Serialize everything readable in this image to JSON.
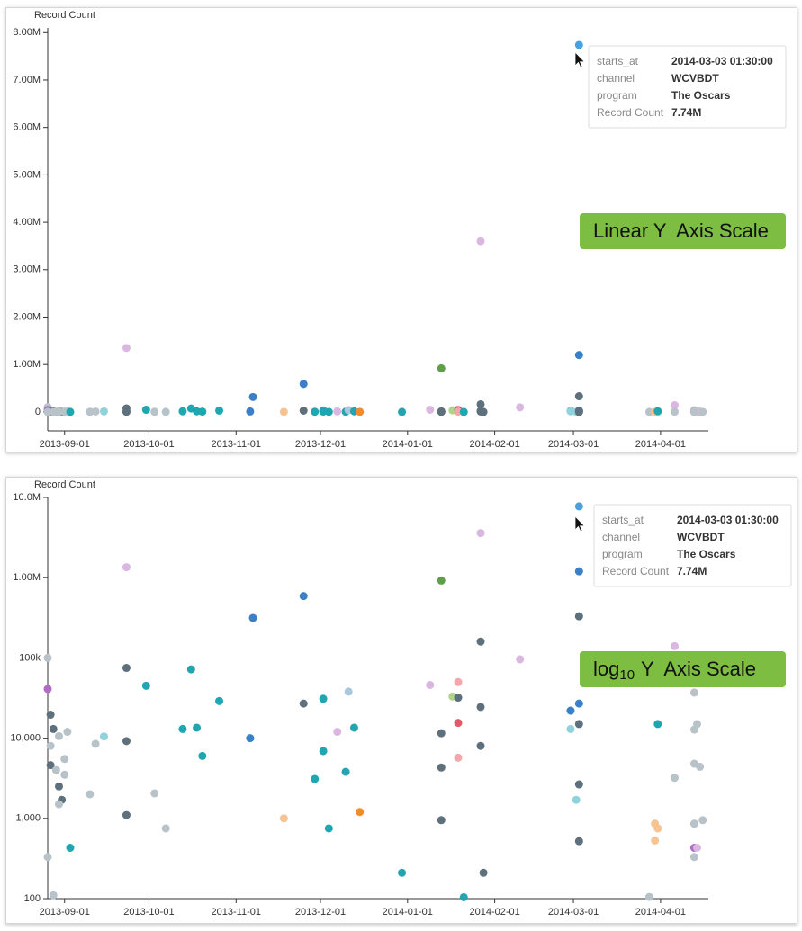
{
  "chart_data": [
    {
      "type": "scatter",
      "yscale": "linear",
      "y_label": "Record Count",
      "annotation": {
        "text": "Linear Y  Axis Scale"
      },
      "tooltip": {
        "rows": [
          [
            "starts_at",
            "2014-03-03 01:30:00"
          ],
          [
            "channel",
            "WCVBDT"
          ],
          [
            "program",
            "The Oscars"
          ],
          [
            "Record Count",
            "7.74M"
          ]
        ]
      },
      "xlim": [
        "2013-08-26",
        "2014-04-18"
      ],
      "xticks": [
        "2013-09-01",
        "2013-10-01",
        "2013-11-01",
        "2013-12-01",
        "2014-01-01",
        "2014-02-01",
        "2014-03-01",
        "2014-04-01"
      ],
      "ylim": [
        -400000,
        8100000
      ],
      "yticks": [
        0,
        {
          "value": 1000000,
          "label": "1.00M"
        },
        {
          "value": 2000000,
          "label": "2.00M"
        },
        {
          "value": 3000000,
          "label": "3.00M"
        },
        {
          "value": 4000000,
          "label": "4.00M"
        },
        {
          "value": 5000000,
          "label": "5.00M"
        },
        {
          "value": 6000000,
          "label": "6.00M"
        },
        {
          "value": 7000000,
          "label": "7.00M"
        },
        {
          "value": 8000000,
          "label": "8.00M"
        }
      ],
      "x": [
        "2013-08-26",
        "2013-08-26",
        "2013-08-27",
        "2013-08-28",
        "2013-08-27",
        "2013-08-27",
        "2013-08-29",
        "2013-08-30",
        "2013-08-30",
        "2013-08-31",
        "2013-08-30",
        "2013-09-01",
        "2013-09-01",
        "2013-09-02",
        "2013-09-03",
        "2013-08-28",
        "2013-08-26",
        "2013-09-10",
        "2013-09-12",
        "2013-09-15",
        "2013-09-23",
        "2013-09-23",
        "2013-09-23",
        "2013-09-23",
        "2013-09-30",
        "2013-10-03",
        "2013-10-07",
        "2013-10-13",
        "2013-10-16",
        "2013-10-18",
        "2013-10-20",
        "2013-10-26",
        "2013-11-06",
        "2013-11-07",
        "2013-11-18",
        "2013-11-25",
        "2013-11-25",
        "2013-11-29",
        "2013-12-02",
        "2013-12-02",
        "2013-12-04",
        "2013-12-07",
        "2013-12-10",
        "2013-12-11",
        "2013-12-13",
        "2013-12-15",
        "2013-12-30",
        "2014-01-09",
        "2014-01-13",
        "2014-01-13",
        "2014-01-13",
        "2014-01-13",
        "2014-01-17",
        "2014-01-19",
        "2014-01-19",
        "2014-01-19",
        "2014-01-19",
        "2014-01-21",
        "2014-01-27",
        "2014-01-27",
        "2014-01-27",
        "2014-01-27",
        "2014-01-28",
        "2014-02-10",
        "2014-02-28",
        "2014-02-28",
        "2014-03-02",
        "2014-03-03",
        "2014-03-03",
        "2014-03-03",
        "2014-03-03",
        "2014-03-03",
        "2014-03-03",
        "2014-03-03",
        "2014-03-28",
        "2014-03-30",
        "2014-03-31",
        "2014-03-30",
        "2014-03-31",
        "2014-04-06",
        "2014-04-06",
        "2014-04-13",
        "2014-04-14",
        "2014-04-13",
        "2014-04-15",
        "2014-04-13",
        "2014-04-13",
        "2014-04-13",
        "2014-04-14",
        "2014-04-13",
        "2014-04-16"
      ],
      "values": [
        100000,
        41000,
        19600,
        13000,
        8000,
        4600,
        4000,
        10600,
        2500,
        1700,
        1500,
        3500,
        5500,
        12000,
        430,
        110,
        330,
        2000,
        8500,
        10500,
        1350000,
        75000,
        9200,
        1100,
        45000,
        2050,
        750,
        13000,
        72000,
        13500,
        6000,
        29000,
        10000,
        315000,
        1000,
        590000,
        27000,
        3100,
        31000,
        6900,
        750,
        12000,
        3800,
        38000,
        13500,
        1200,
        210,
        46000,
        920000,
        11500,
        4300,
        950,
        33000,
        50000,
        32000,
        15500,
        5700,
        104,
        3600000,
        160000,
        24500,
        8000,
        210,
        96000,
        22000,
        13000,
        1700,
        7740000,
        1200000,
        330000,
        27000,
        15000,
        2650,
        520,
        105,
        860,
        750,
        530,
        15000,
        140000,
        3200,
        37000,
        15000,
        4800,
        4400,
        12800,
        860,
        430,
        430,
        330,
        950
      ],
      "colors": [
        "#b8c3c9",
        "#b36ac8",
        "#5d707c",
        "#5d707c",
        "#b8c3c9",
        "#5d707c",
        "#b8c3c9",
        "#b8c3c9",
        "#5d707c",
        "#5d707c",
        "#b8c3c9",
        "#b8c3c9",
        "#b8c3c9",
        "#b8c3c9",
        "#1fa6b1",
        "#b8c3c9",
        "#b8c3c9",
        "#b8c3c9",
        "#b8c3c9",
        "#8fd4dc",
        "#dab7e0",
        "#5d707c",
        "#5d707c",
        "#5d707c",
        "#1fa6b1",
        "#b8c3c9",
        "#b8c3c9",
        "#1fa6b1",
        "#1fa6b1",
        "#1fa6b1",
        "#1fa6b1",
        "#1fa6b1",
        "#3b80c6",
        "#3b80c6",
        "#f7c391",
        "#3b80c6",
        "#5d707c",
        "#1fa6b1",
        "#1fa6b1",
        "#1fa6b1",
        "#1fa6b1",
        "#dab7e0",
        "#1fa6b1",
        "#a9c8dd",
        "#1fa6b1",
        "#ef8c2c",
        "#1fa6b1",
        "#dab7e0",
        "#5ea04a",
        "#5d707c",
        "#5d707c",
        "#5d707c",
        "#b2d38b",
        "#f4a6ad",
        "#5d707c",
        "#e4596a",
        "#f4a6ad",
        "#1fa6b1",
        "#dab7e0",
        "#5d707c",
        "#5d707c",
        "#5d707c",
        "#5d707c",
        "#dab7e0",
        "#3b80c6",
        "#8fd4dc",
        "#8fd4dc",
        "#4a9fdd",
        "#3b80c6",
        "#5d707c",
        "#3b80c6",
        "#5d707c",
        "#5d707c",
        "#5d707c",
        "#b8c3c9",
        "#f7c391",
        "#f7c391",
        "#f7c391",
        "#1fa6b1",
        "#dab7e0",
        "#b8c3c9",
        "#b8c3c9",
        "#b8c3c9",
        "#b8c3c9",
        "#b8c3c9",
        "#b8c3c9",
        "#b8c3c9",
        "#b36ac8",
        "#dab7e0",
        "#b8c3c9",
        "#b8c3c9"
      ]
    },
    {
      "type": "scatter",
      "yscale": "log",
      "y_label": "Record Count",
      "annotation": {
        "text": "log",
        "subscript": "10",
        "rest": "Y  Axis Scale"
      },
      "tooltip": {
        "rows": [
          [
            "starts_at",
            "2014-03-03 01:30:00"
          ],
          [
            "channel",
            "WCVBDT"
          ],
          [
            "program",
            "The Oscars"
          ],
          [
            "Record Count",
            "7.74M"
          ]
        ]
      },
      "xlim": [
        "2013-08-26",
        "2014-04-18"
      ],
      "xticks": [
        "2013-09-01",
        "2013-10-01",
        "2013-11-01",
        "2013-12-01",
        "2014-01-01",
        "2014-02-01",
        "2014-03-01",
        "2014-04-01"
      ],
      "ylim": [
        100,
        10000000
      ],
      "yticks": [
        100,
        {
          "value": 1000,
          "label": "1,000"
        },
        {
          "value": 10000,
          "label": "10,000"
        },
        {
          "value": 100000,
          "label": "100k"
        },
        {
          "value": 1000000,
          "label": "1.00M"
        },
        {
          "value": 10000000,
          "label": "10.0M"
        }
      ],
      "x": [
        "2013-08-26",
        "2013-08-26",
        "2013-08-27",
        "2013-08-28",
        "2013-08-27",
        "2013-08-27",
        "2013-08-29",
        "2013-08-30",
        "2013-08-30",
        "2013-08-31",
        "2013-08-30",
        "2013-09-01",
        "2013-09-01",
        "2013-09-02",
        "2013-09-03",
        "2013-08-28",
        "2013-08-26",
        "2013-09-10",
        "2013-09-12",
        "2013-09-15",
        "2013-09-23",
        "2013-09-23",
        "2013-09-23",
        "2013-09-23",
        "2013-09-30",
        "2013-10-03",
        "2013-10-07",
        "2013-10-13",
        "2013-10-16",
        "2013-10-18",
        "2013-10-20",
        "2013-10-26",
        "2013-11-06",
        "2013-11-07",
        "2013-11-18",
        "2013-11-25",
        "2013-11-25",
        "2013-11-29",
        "2013-12-02",
        "2013-12-02",
        "2013-12-04",
        "2013-12-07",
        "2013-12-10",
        "2013-12-11",
        "2013-12-13",
        "2013-12-15",
        "2013-12-30",
        "2014-01-09",
        "2014-01-13",
        "2014-01-13",
        "2014-01-13",
        "2014-01-13",
        "2014-01-17",
        "2014-01-19",
        "2014-01-19",
        "2014-01-19",
        "2014-01-19",
        "2014-01-21",
        "2014-01-27",
        "2014-01-27",
        "2014-01-27",
        "2014-01-27",
        "2014-01-28",
        "2014-02-10",
        "2014-02-28",
        "2014-02-28",
        "2014-03-02",
        "2014-03-03",
        "2014-03-03",
        "2014-03-03",
        "2014-03-03",
        "2014-03-03",
        "2014-03-03",
        "2014-03-03",
        "2014-03-28",
        "2014-03-30",
        "2014-03-31",
        "2014-03-30",
        "2014-03-31",
        "2014-04-06",
        "2014-04-06",
        "2014-04-13",
        "2014-04-14",
        "2014-04-13",
        "2014-04-15",
        "2014-04-13",
        "2014-04-13",
        "2014-04-13",
        "2014-04-14",
        "2014-04-13",
        "2014-04-16"
      ],
      "values": [
        100000,
        41000,
        19600,
        13000,
        8000,
        4600,
        4000,
        10600,
        2500,
        1700,
        1500,
        3500,
        5500,
        12000,
        430,
        110,
        330,
        2000,
        8500,
        10500,
        1350000,
        75000,
        9200,
        1100,
        45000,
        2050,
        750,
        13000,
        72000,
        13500,
        6000,
        29000,
        10000,
        315000,
        1000,
        590000,
        27000,
        3100,
        31000,
        6900,
        750,
        12000,
        3800,
        38000,
        13500,
        1200,
        210,
        46000,
        920000,
        11500,
        4300,
        950,
        33000,
        50000,
        32000,
        15500,
        5700,
        104,
        3600000,
        160000,
        24500,
        8000,
        210,
        96000,
        22000,
        13000,
        1700,
        7740000,
        1200000,
        330000,
        27000,
        15000,
        2650,
        520,
        105,
        860,
        750,
        530,
        15000,
        140000,
        3200,
        37000,
        15000,
        4800,
        4400,
        12800,
        860,
        430,
        430,
        330,
        950
      ],
      "colors": [
        "#b8c3c9",
        "#b36ac8",
        "#5d707c",
        "#5d707c",
        "#b8c3c9",
        "#5d707c",
        "#b8c3c9",
        "#b8c3c9",
        "#5d707c",
        "#5d707c",
        "#b8c3c9",
        "#b8c3c9",
        "#b8c3c9",
        "#b8c3c9",
        "#1fa6b1",
        "#b8c3c9",
        "#b8c3c9",
        "#b8c3c9",
        "#b8c3c9",
        "#8fd4dc",
        "#dab7e0",
        "#5d707c",
        "#5d707c",
        "#5d707c",
        "#1fa6b1",
        "#b8c3c9",
        "#b8c3c9",
        "#1fa6b1",
        "#1fa6b1",
        "#1fa6b1",
        "#1fa6b1",
        "#1fa6b1",
        "#3b80c6",
        "#3b80c6",
        "#f7c391",
        "#3b80c6",
        "#5d707c",
        "#1fa6b1",
        "#1fa6b1",
        "#1fa6b1",
        "#1fa6b1",
        "#dab7e0",
        "#1fa6b1",
        "#a9c8dd",
        "#1fa6b1",
        "#ef8c2c",
        "#1fa6b1",
        "#dab7e0",
        "#5ea04a",
        "#5d707c",
        "#5d707c",
        "#5d707c",
        "#b2d38b",
        "#f4a6ad",
        "#5d707c",
        "#e4596a",
        "#f4a6ad",
        "#1fa6b1",
        "#dab7e0",
        "#5d707c",
        "#5d707c",
        "#5d707c",
        "#5d707c",
        "#dab7e0",
        "#3b80c6",
        "#8fd4dc",
        "#8fd4dc",
        "#4a9fdd",
        "#3b80c6",
        "#5d707c",
        "#3b80c6",
        "#5d707c",
        "#5d707c",
        "#5d707c",
        "#b8c3c9",
        "#f7c391",
        "#f7c391",
        "#f7c391",
        "#1fa6b1",
        "#dab7e0",
        "#b8c3c9",
        "#b8c3c9",
        "#b8c3c9",
        "#b8c3c9",
        "#b8c3c9",
        "#b8c3c9",
        "#b8c3c9",
        "#b36ac8",
        "#dab7e0",
        "#b8c3c9",
        "#b8c3c9"
      ]
    }
  ]
}
